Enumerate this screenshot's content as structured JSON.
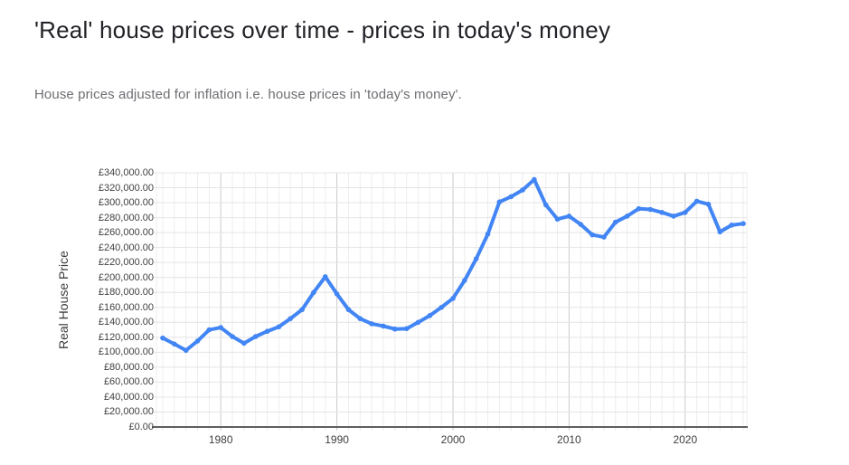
{
  "header": {
    "title": "'Real' house prices over time - prices in today's money",
    "subtitle": "House prices adjusted for inflation i.e. house prices in 'today's money'."
  },
  "chart_data": {
    "type": "line",
    "title": "",
    "xlabel": "",
    "ylabel": "Real House Price",
    "ylim": [
      0,
      340000
    ],
    "ytick_step": 20000,
    "grid": true,
    "legend": "none",
    "x": [
      1975,
      1976,
      1977,
      1978,
      1979,
      1980,
      1981,
      1982,
      1983,
      1984,
      1985,
      1986,
      1987,
      1988,
      1989,
      1990,
      1991,
      1992,
      1993,
      1994,
      1995,
      1996,
      1997,
      1998,
      1999,
      2000,
      2001,
      2002,
      2003,
      2004,
      2005,
      2006,
      2007,
      2008,
      2009,
      2010,
      2011,
      2012,
      2013,
      2014,
      2015,
      2016,
      2017,
      2018,
      2019,
      2020,
      2021,
      2022,
      2023,
      2024,
      2025
    ],
    "series": [
      {
        "name": "Real House Price",
        "values": [
          119000,
          111000,
          102500,
          115000,
          130000,
          133000,
          121000,
          112000,
          121000,
          128000,
          134000,
          145000,
          157000,
          180000,
          201000,
          178000,
          157000,
          145000,
          138000,
          135000,
          131000,
          131500,
          140000,
          149000,
          160000,
          172000,
          196000,
          225000,
          258000,
          301000,
          308000,
          317000,
          331000,
          297000,
          278000,
          282000,
          271000,
          257000,
          254000,
          274000,
          282000,
          292000,
          291000,
          287000,
          282000,
          287000,
          302000,
          298000,
          261000,
          270000,
          272000
        ]
      }
    ],
    "y_tick_labels": [
      "£0.00",
      "£20,000.00",
      "£40,000.00",
      "£60,000.00",
      "£80,000.00",
      "£100,000.00",
      "£120,000.00",
      "£140,000.00",
      "£160,000.00",
      "£180,000.00",
      "£200,000.00",
      "£220,000.00",
      "£240,000.00",
      "£260,000.00",
      "£280,000.00",
      "£300,000.00",
      "£320,000.00",
      "£340,000.00"
    ],
    "x_tick_labels": [
      "1980",
      "1990",
      "2000",
      "2010",
      "2020"
    ],
    "xticks": [
      1980,
      1990,
      2000,
      2010,
      2020
    ],
    "colors": {
      "line": "#4285f4",
      "marker": "#4285f4",
      "grid_horizontal": "#e4e4e4",
      "grid_vertical_minor": "#ededed",
      "grid_vertical_major": "#cbcbcb",
      "axis_baseline": "#5f5f5f",
      "tick_text": "#3f3f3f"
    }
  }
}
